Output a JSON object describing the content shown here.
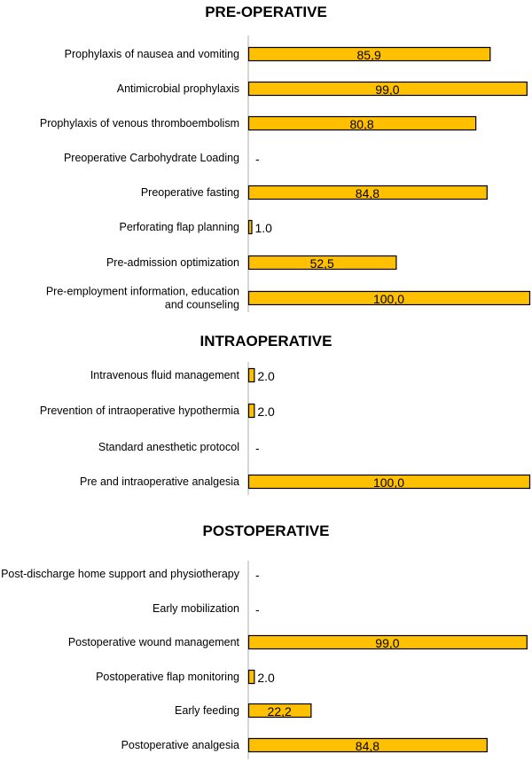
{
  "chart_data": {
    "type": "bar",
    "orientation": "horizontal",
    "xlim": [
      0,
      100
    ],
    "bar_color": "#FFC000",
    "grid": false,
    "sections": [
      {
        "title": "PRE-OPERATIVE",
        "items": [
          {
            "label": [
              "Prophylaxis of nausea and vomiting"
            ],
            "value": 85.9,
            "display": "85,9"
          },
          {
            "label": [
              "Antimicrobial prophylaxis"
            ],
            "value": 99.0,
            "display": "99,0"
          },
          {
            "label": [
              "Prophylaxis of venous thromboembolism"
            ],
            "value": 80.8,
            "display": "80,8"
          },
          {
            "label": [
              "Preoperative Carbohydrate Loading"
            ],
            "value": null,
            "display": "-"
          },
          {
            "label": [
              "Preoperative fasting"
            ],
            "value": 84.8,
            "display": "84,8"
          },
          {
            "label": [
              "Perforating flap planning"
            ],
            "value": 1.0,
            "display": "1.0"
          },
          {
            "label": [
              "Pre-admission optimization"
            ],
            "value": 52.5,
            "display": "52,5"
          },
          {
            "label": [
              "Pre-employment information, education",
              "and counseling"
            ],
            "value": 100.0,
            "display": "100,0"
          }
        ]
      },
      {
        "title": "INTRAOPERATIVE",
        "items": [
          {
            "label": [
              "Intravenous fluid management"
            ],
            "value": 2.0,
            "display": "2.0"
          },
          {
            "label": [
              "Prevention of intraoperative hypothermia"
            ],
            "value": 2.0,
            "display": "2.0"
          },
          {
            "label": [
              "Standard anesthetic protocol"
            ],
            "value": null,
            "display": "-"
          },
          {
            "label": [
              "Pre and intraoperative analgesia"
            ],
            "value": 100.0,
            "display": "100,0"
          }
        ]
      },
      {
        "title": "POSTOPERATIVE",
        "items": [
          {
            "label": [
              "Post-discharge home support and physiotherapy"
            ],
            "value": null,
            "display": "-"
          },
          {
            "label": [
              "Early mobilization"
            ],
            "value": null,
            "display": "-"
          },
          {
            "label": [
              "Postoperative wound management"
            ],
            "value": 99.0,
            "display": "99,0"
          },
          {
            "label": [
              "Postoperative flap monitoring"
            ],
            "value": 2.0,
            "display": "2.0"
          },
          {
            "label": [
              "Early feeding"
            ],
            "value": 22.2,
            "display": "22,2"
          },
          {
            "label": [
              "Postoperative analgesia"
            ],
            "value": 84.8,
            "display": "84,8"
          }
        ]
      }
    ]
  }
}
